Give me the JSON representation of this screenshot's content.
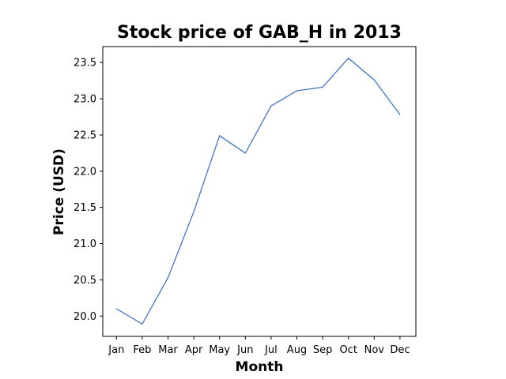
{
  "chart_data": {
    "type": "line",
    "title": "Stock price of GAB_H in 2013",
    "xlabel": "Month",
    "ylabel": "Price (USD)",
    "categories": [
      "Jan",
      "Feb",
      "Mar",
      "Apr",
      "May",
      "Jun",
      "Jul",
      "Aug",
      "Sep",
      "Oct",
      "Nov",
      "Dec"
    ],
    "series": [
      {
        "values": [
          20.1,
          19.89,
          20.53,
          21.44,
          22.49,
          22.25,
          22.9,
          23.11,
          23.16,
          23.56,
          23.26,
          22.78
        ]
      }
    ],
    "yticks": [
      "20.0",
      "20.5",
      "21.0",
      "21.5",
      "22.0",
      "22.5",
      "23.0",
      "23.5"
    ],
    "ylim": [
      19.72,
      23.72
    ],
    "grid": false,
    "legend": "none",
    "line_color": "#4472c4"
  }
}
